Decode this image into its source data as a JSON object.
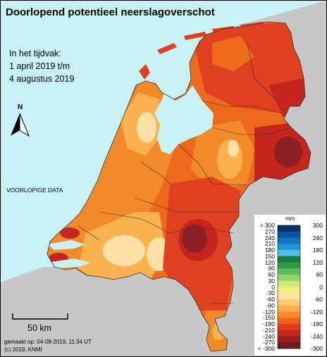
{
  "title": "Doorlopend potentieel neerslagoverschot",
  "period": {
    "line1": "In het tijdvak:",
    "line2": "1 april 2019 t/m",
    "line3": "4 augustus 2019"
  },
  "preliminary_label": "VOORLOPIGE DATA",
  "north_label": "N",
  "scale_label": "50 km",
  "footer": {
    "made": "gemaakt op: 04-08-2019, 11:34 UT",
    "copyright": "(c) 2019, KNMI"
  },
  "legend": {
    "unit": "mm",
    "colors": [
      "#08306b",
      "#0a52a0",
      "#0f73c0",
      "#2196d8",
      "#55bde6",
      "#1a7a3a",
      "#2e9a48",
      "#5cbd58",
      "#93d36b",
      "#cfe77b",
      "#f3ef7a",
      "#fbe3a2",
      "#fcca7a",
      "#fbb050",
      "#f88b2c",
      "#f06418",
      "#e0401a",
      "#c4261e",
      "#9c1e22",
      "#6a1e22"
    ],
    "left_labels": [
      "> 300",
      "270",
      "240",
      "210",
      "180",
      "150",
      "120",
      "90",
      "60",
      "30",
      "0",
      "-30",
      "-60",
      "-90",
      "-120",
      "-150",
      "-180",
      "-210",
      "-240",
      "-270",
      "< -300"
    ],
    "right_labels": [
      "300",
      "240",
      "180",
      "120",
      "60",
      "0",
      "-60",
      "-120",
      "-180",
      "-240",
      "-300"
    ]
  },
  "map_colors": {
    "sea": "#c8f2f6",
    "foreign_land": "#c7c7c7",
    "light": "#fde0a8",
    "light_orange": "#fbb24e",
    "orange": "#f38a2a",
    "dark_orange": "#ec6a1c",
    "red": "#df4020",
    "dark_red": "#c4261e",
    "deep_red": "#8c2024"
  }
}
